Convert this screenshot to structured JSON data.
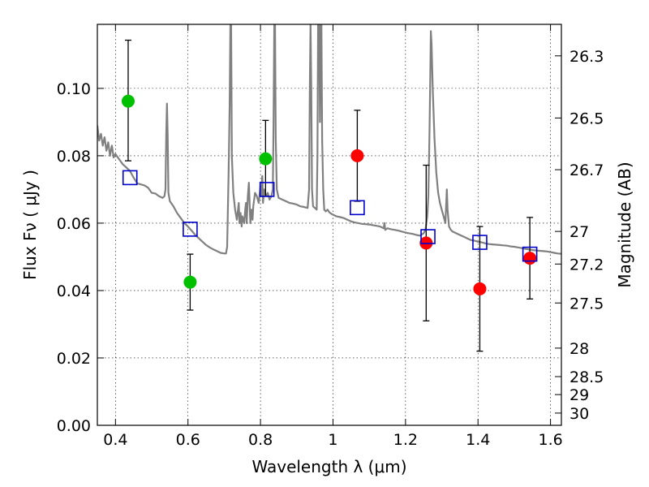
{
  "chart_data": {
    "type": "scatter",
    "xlabel": "Wavelength  λ (μm)",
    "ylabel": "Flux  Fν  ( μJy )",
    "y2label": "Magnitude (AB)",
    "xlim": [
      0.35,
      1.63
    ],
    "ylim": [
      0.0,
      0.119
    ],
    "x_ticks": [
      0.4,
      0.6,
      0.8,
      1.0,
      1.2,
      1.4,
      1.6
    ],
    "x_tick_labels": [
      "0.4",
      "0.6",
      "0.8",
      "1",
      "1.2",
      "1.4",
      "1.6"
    ],
    "y_ticks": [
      0.0,
      0.02,
      0.04,
      0.06,
      0.08,
      0.1
    ],
    "y_tick_labels": [
      "0.00",
      "0.02",
      "0.04",
      "0.06",
      "0.08",
      "0.10"
    ],
    "mag_ticks": [
      26.3,
      26.5,
      26.7,
      27,
      27.2,
      27.5,
      28,
      28.5,
      29,
      30
    ],
    "mag_tick_labels": [
      "26.3",
      "26.5",
      "26.7",
      "27",
      "27.2",
      "27.5",
      "28",
      "28.5",
      "29",
      "30"
    ],
    "grid": true,
    "colors": {
      "green": "#00c000",
      "red": "#ff0000",
      "blue": "#0000cc",
      "model": "#808080",
      "errorbar": "#000000"
    },
    "series": [
      {
        "marker": "filled-circle",
        "color": "green",
        "points": [
          {
            "x": 0.435,
            "y": 0.0962,
            "err_low": 0.0785,
            "err_high": 0.1143
          },
          {
            "x": 0.606,
            "y": 0.0425,
            "err_low": 0.0342,
            "err_high": 0.0508
          },
          {
            "x": 0.814,
            "y": 0.0791,
            "err_low": 0.068,
            "err_high": 0.0905
          }
        ]
      },
      {
        "marker": "filled-circle",
        "color": "red",
        "points": [
          {
            "x": 1.067,
            "y": 0.08,
            "err_low": 0.0665,
            "err_high": 0.0935
          },
          {
            "x": 1.257,
            "y": 0.0541,
            "err_low": 0.031,
            "err_high": 0.0772
          },
          {
            "x": 1.405,
            "y": 0.0405,
            "err_low": 0.022,
            "err_high": 0.059
          },
          {
            "x": 1.543,
            "y": 0.0496,
            "err_low": 0.0375,
            "err_high": 0.0617
          }
        ]
      },
      {
        "marker": "open-square",
        "color": "blue",
        "points": [
          {
            "x": 0.44,
            "y": 0.0735
          },
          {
            "x": 0.606,
            "y": 0.0582
          },
          {
            "x": 0.818,
            "y": 0.07
          },
          {
            "x": 1.067,
            "y": 0.0646
          },
          {
            "x": 1.262,
            "y": 0.056
          },
          {
            "x": 1.405,
            "y": 0.0543
          },
          {
            "x": 1.543,
            "y": 0.0508
          }
        ]
      },
      {
        "marker": "line",
        "color": "model",
        "points": [
          [
            0.35,
            0.089
          ],
          [
            0.355,
            0.0845
          ],
          [
            0.36,
            0.0865
          ],
          [
            0.365,
            0.083
          ],
          [
            0.37,
            0.0855
          ],
          [
            0.375,
            0.0815
          ],
          [
            0.38,
            0.084
          ],
          [
            0.385,
            0.08
          ],
          [
            0.39,
            0.083
          ],
          [
            0.395,
            0.0795
          ],
          [
            0.4,
            0.0805
          ],
          [
            0.41,
            0.079
          ],
          [
            0.42,
            0.0775
          ],
          [
            0.43,
            0.0765
          ],
          [
            0.44,
            0.0755
          ],
          [
            0.45,
            0.0735
          ],
          [
            0.46,
            0.0718
          ],
          [
            0.47,
            0.0715
          ],
          [
            0.48,
            0.0712
          ],
          [
            0.49,
            0.0705
          ],
          [
            0.5,
            0.069
          ],
          [
            0.51,
            0.0688
          ],
          [
            0.52,
            0.068
          ],
          [
            0.53,
            0.0675
          ],
          [
            0.535,
            0.068
          ],
          [
            0.538,
            0.07
          ],
          [
            0.54,
            0.086
          ],
          [
            0.542,
            0.0955
          ],
          [
            0.544,
            0.086
          ],
          [
            0.546,
            0.069
          ],
          [
            0.55,
            0.0665
          ],
          [
            0.56,
            0.065
          ],
          [
            0.57,
            0.063
          ],
          [
            0.58,
            0.0615
          ],
          [
            0.59,
            0.06
          ],
          [
            0.6,
            0.059
          ],
          [
            0.61,
            0.0578
          ],
          [
            0.62,
            0.0565
          ],
          [
            0.63,
            0.0555
          ],
          [
            0.64,
            0.0545
          ],
          [
            0.65,
            0.0535
          ],
          [
            0.66,
            0.0528
          ],
          [
            0.67,
            0.0522
          ],
          [
            0.68,
            0.0517
          ],
          [
            0.69,
            0.0512
          ],
          [
            0.7,
            0.051
          ],
          [
            0.705,
            0.051
          ],
          [
            0.708,
            0.053
          ],
          [
            0.712,
            0.075
          ],
          [
            0.715,
            0.095
          ],
          [
            0.717,
            0.119
          ],
          [
            0.719,
            0.119
          ],
          [
            0.721,
            0.08
          ],
          [
            0.725,
            0.069
          ],
          [
            0.73,
            0.064
          ],
          [
            0.735,
            0.061
          ],
          [
            0.74,
            0.066
          ],
          [
            0.742,
            0.06
          ],
          [
            0.745,
            0.063
          ],
          [
            0.748,
            0.059
          ],
          [
            0.75,
            0.062
          ],
          [
            0.755,
            0.06
          ],
          [
            0.758,
            0.064
          ],
          [
            0.76,
            0.066
          ],
          [
            0.762,
            0.06
          ],
          [
            0.765,
            0.068
          ],
          [
            0.768,
            0.072
          ],
          [
            0.77,
            0.066
          ],
          [
            0.772,
            0.06
          ],
          [
            0.775,
            0.064
          ],
          [
            0.778,
            0.061
          ],
          [
            0.78,
            0.065
          ],
          [
            0.785,
            0.069
          ],
          [
            0.79,
            0.068
          ],
          [
            0.795,
            0.066
          ],
          [
            0.8,
            0.071
          ],
          [
            0.802,
            0.068
          ],
          [
            0.805,
            0.074
          ],
          [
            0.807,
            0.066
          ],
          [
            0.81,
            0.07
          ],
          [
            0.815,
            0.068
          ],
          [
            0.82,
            0.069
          ],
          [
            0.825,
            0.067
          ],
          [
            0.83,
            0.068
          ],
          [
            0.834,
            0.07
          ],
          [
            0.836,
            0.09
          ],
          [
            0.838,
            0.119
          ],
          [
            0.84,
            0.119
          ],
          [
            0.842,
            0.085
          ],
          [
            0.845,
            0.07
          ],
          [
            0.85,
            0.0675
          ],
          [
            0.86,
            0.067
          ],
          [
            0.87,
            0.0665
          ],
          [
            0.88,
            0.066
          ],
          [
            0.89,
            0.0658
          ],
          [
            0.9,
            0.0655
          ],
          [
            0.91,
            0.065
          ],
          [
            0.92,
            0.0648
          ],
          [
            0.93,
            0.0645
          ],
          [
            0.934,
            0.07
          ],
          [
            0.936,
            0.1
          ],
          [
            0.938,
            0.119
          ],
          [
            0.94,
            0.1
          ],
          [
            0.942,
            0.07
          ],
          [
            0.945,
            0.065
          ],
          [
            0.95,
            0.0645
          ],
          [
            0.955,
            0.064
          ],
          [
            0.957,
            0.08
          ],
          [
            0.959,
            0.119
          ],
          [
            0.962,
            0.119
          ],
          [
            0.964,
            0.09
          ],
          [
            0.966,
            0.119
          ],
          [
            0.968,
            0.119
          ],
          [
            0.97,
            0.085
          ],
          [
            0.973,
            0.07
          ],
          [
            0.976,
            0.064
          ],
          [
            0.98,
            0.0635
          ],
          [
            0.985,
            0.064
          ],
          [
            0.99,
            0.0632
          ],
          [
            0.995,
            0.0628
          ],
          [
            1.0,
            0.0625
          ],
          [
            1.01,
            0.062
          ],
          [
            1.02,
            0.0618
          ],
          [
            1.03,
            0.0615
          ],
          [
            1.04,
            0.061
          ],
          [
            1.05,
            0.0605
          ],
          [
            1.06,
            0.0602
          ],
          [
            1.07,
            0.06
          ],
          [
            1.08,
            0.0598
          ],
          [
            1.09,
            0.0597
          ],
          [
            1.1,
            0.0596
          ],
          [
            1.11,
            0.0594
          ],
          [
            1.12,
            0.0592
          ],
          [
            1.13,
            0.059
          ],
          [
            1.14,
            0.0585
          ],
          [
            1.142,
            0.06
          ],
          [
            1.144,
            0.058
          ],
          [
            1.15,
            0.0585
          ],
          [
            1.16,
            0.0582
          ],
          [
            1.17,
            0.058
          ],
          [
            1.18,
            0.0578
          ],
          [
            1.19,
            0.0575
          ],
          [
            1.2,
            0.0572
          ],
          [
            1.21,
            0.057
          ],
          [
            1.22,
            0.0568
          ],
          [
            1.23,
            0.0565
          ],
          [
            1.24,
            0.0563
          ],
          [
            1.25,
            0.057
          ],
          [
            1.255,
            0.058
          ],
          [
            1.26,
            0.062
          ],
          [
            1.263,
            0.068
          ],
          [
            1.266,
            0.085
          ],
          [
            1.268,
            0.1
          ],
          [
            1.27,
            0.117
          ],
          [
            1.272,
            0.113
          ],
          [
            1.275,
            0.1
          ],
          [
            1.28,
            0.085
          ],
          [
            1.285,
            0.075
          ],
          [
            1.29,
            0.069
          ],
          [
            1.295,
            0.066
          ],
          [
            1.3,
            0.064
          ],
          [
            1.305,
            0.062
          ],
          [
            1.31,
            0.06
          ],
          [
            1.314,
            0.07
          ],
          [
            1.316,
            0.064
          ],
          [
            1.32,
            0.059
          ],
          [
            1.325,
            0.058
          ],
          [
            1.33,
            0.0575
          ],
          [
            1.34,
            0.057
          ],
          [
            1.35,
            0.0565
          ],
          [
            1.36,
            0.056
          ],
          [
            1.37,
            0.0555
          ],
          [
            1.38,
            0.055
          ],
          [
            1.39,
            0.0548
          ],
          [
            1.4,
            0.0545
          ],
          [
            1.41,
            0.0543
          ],
          [
            1.42,
            0.054
          ],
          [
            1.43,
            0.0538
          ],
          [
            1.44,
            0.0537
          ],
          [
            1.45,
            0.0536
          ],
          [
            1.46,
            0.0535
          ],
          [
            1.47,
            0.0534
          ],
          [
            1.48,
            0.0533
          ],
          [
            1.49,
            0.0531
          ],
          [
            1.5,
            0.053
          ],
          [
            1.51,
            0.0528
          ],
          [
            1.52,
            0.0526
          ],
          [
            1.53,
            0.0524
          ],
          [
            1.54,
            0.0522
          ],
          [
            1.55,
            0.052
          ],
          [
            1.56,
            0.0519
          ],
          [
            1.57,
            0.0518
          ],
          [
            1.58,
            0.0517
          ],
          [
            1.59,
            0.0516
          ],
          [
            1.6,
            0.0514
          ],
          [
            1.61,
            0.0512
          ],
          [
            1.62,
            0.051
          ],
          [
            1.63,
            0.0509
          ]
        ]
      }
    ]
  }
}
